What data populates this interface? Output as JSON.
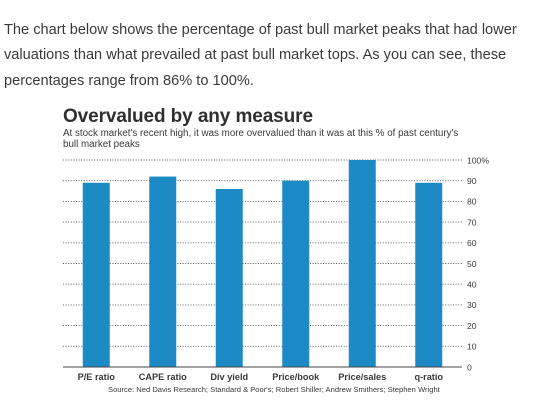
{
  "intro_text": "The chart below shows the percentage of past bull market peaks that had lower valuations than what prevailed at past bull market tops. As you can see, these percentages range from 86% to 100%.",
  "colors": {
    "bar": "#1c8bc5",
    "grid": "#555555",
    "axis": "#444444",
    "text": "#3a3a3a"
  },
  "chart_data": {
    "type": "bar",
    "title": "Overvalued by any measure",
    "subtitle": "At stock market's recent high, it was more overvalued than it was at this % of past century's bull market peaks",
    "categories": [
      "P/E ratio",
      "CAPE ratio",
      "Div yield",
      "Price/book",
      "Price/sales",
      "q-ratio"
    ],
    "values": [
      89,
      92,
      86,
      90,
      100,
      89
    ],
    "ylim": [
      0,
      100
    ],
    "yticks": [
      0,
      10,
      20,
      30,
      40,
      50,
      60,
      70,
      80,
      90,
      100
    ],
    "ytick_labels": [
      "0",
      "10",
      "20",
      "30",
      "40",
      "50",
      "60",
      "70",
      "80",
      "90",
      "100%"
    ],
    "grid": true,
    "grid_style": "dotted",
    "yaxis_side": "right",
    "legend": "none",
    "source": "Source: Ned Davis Research; Standard & Poor's; Robert Shiller; Andrew Smithers; Stephen Wright"
  }
}
